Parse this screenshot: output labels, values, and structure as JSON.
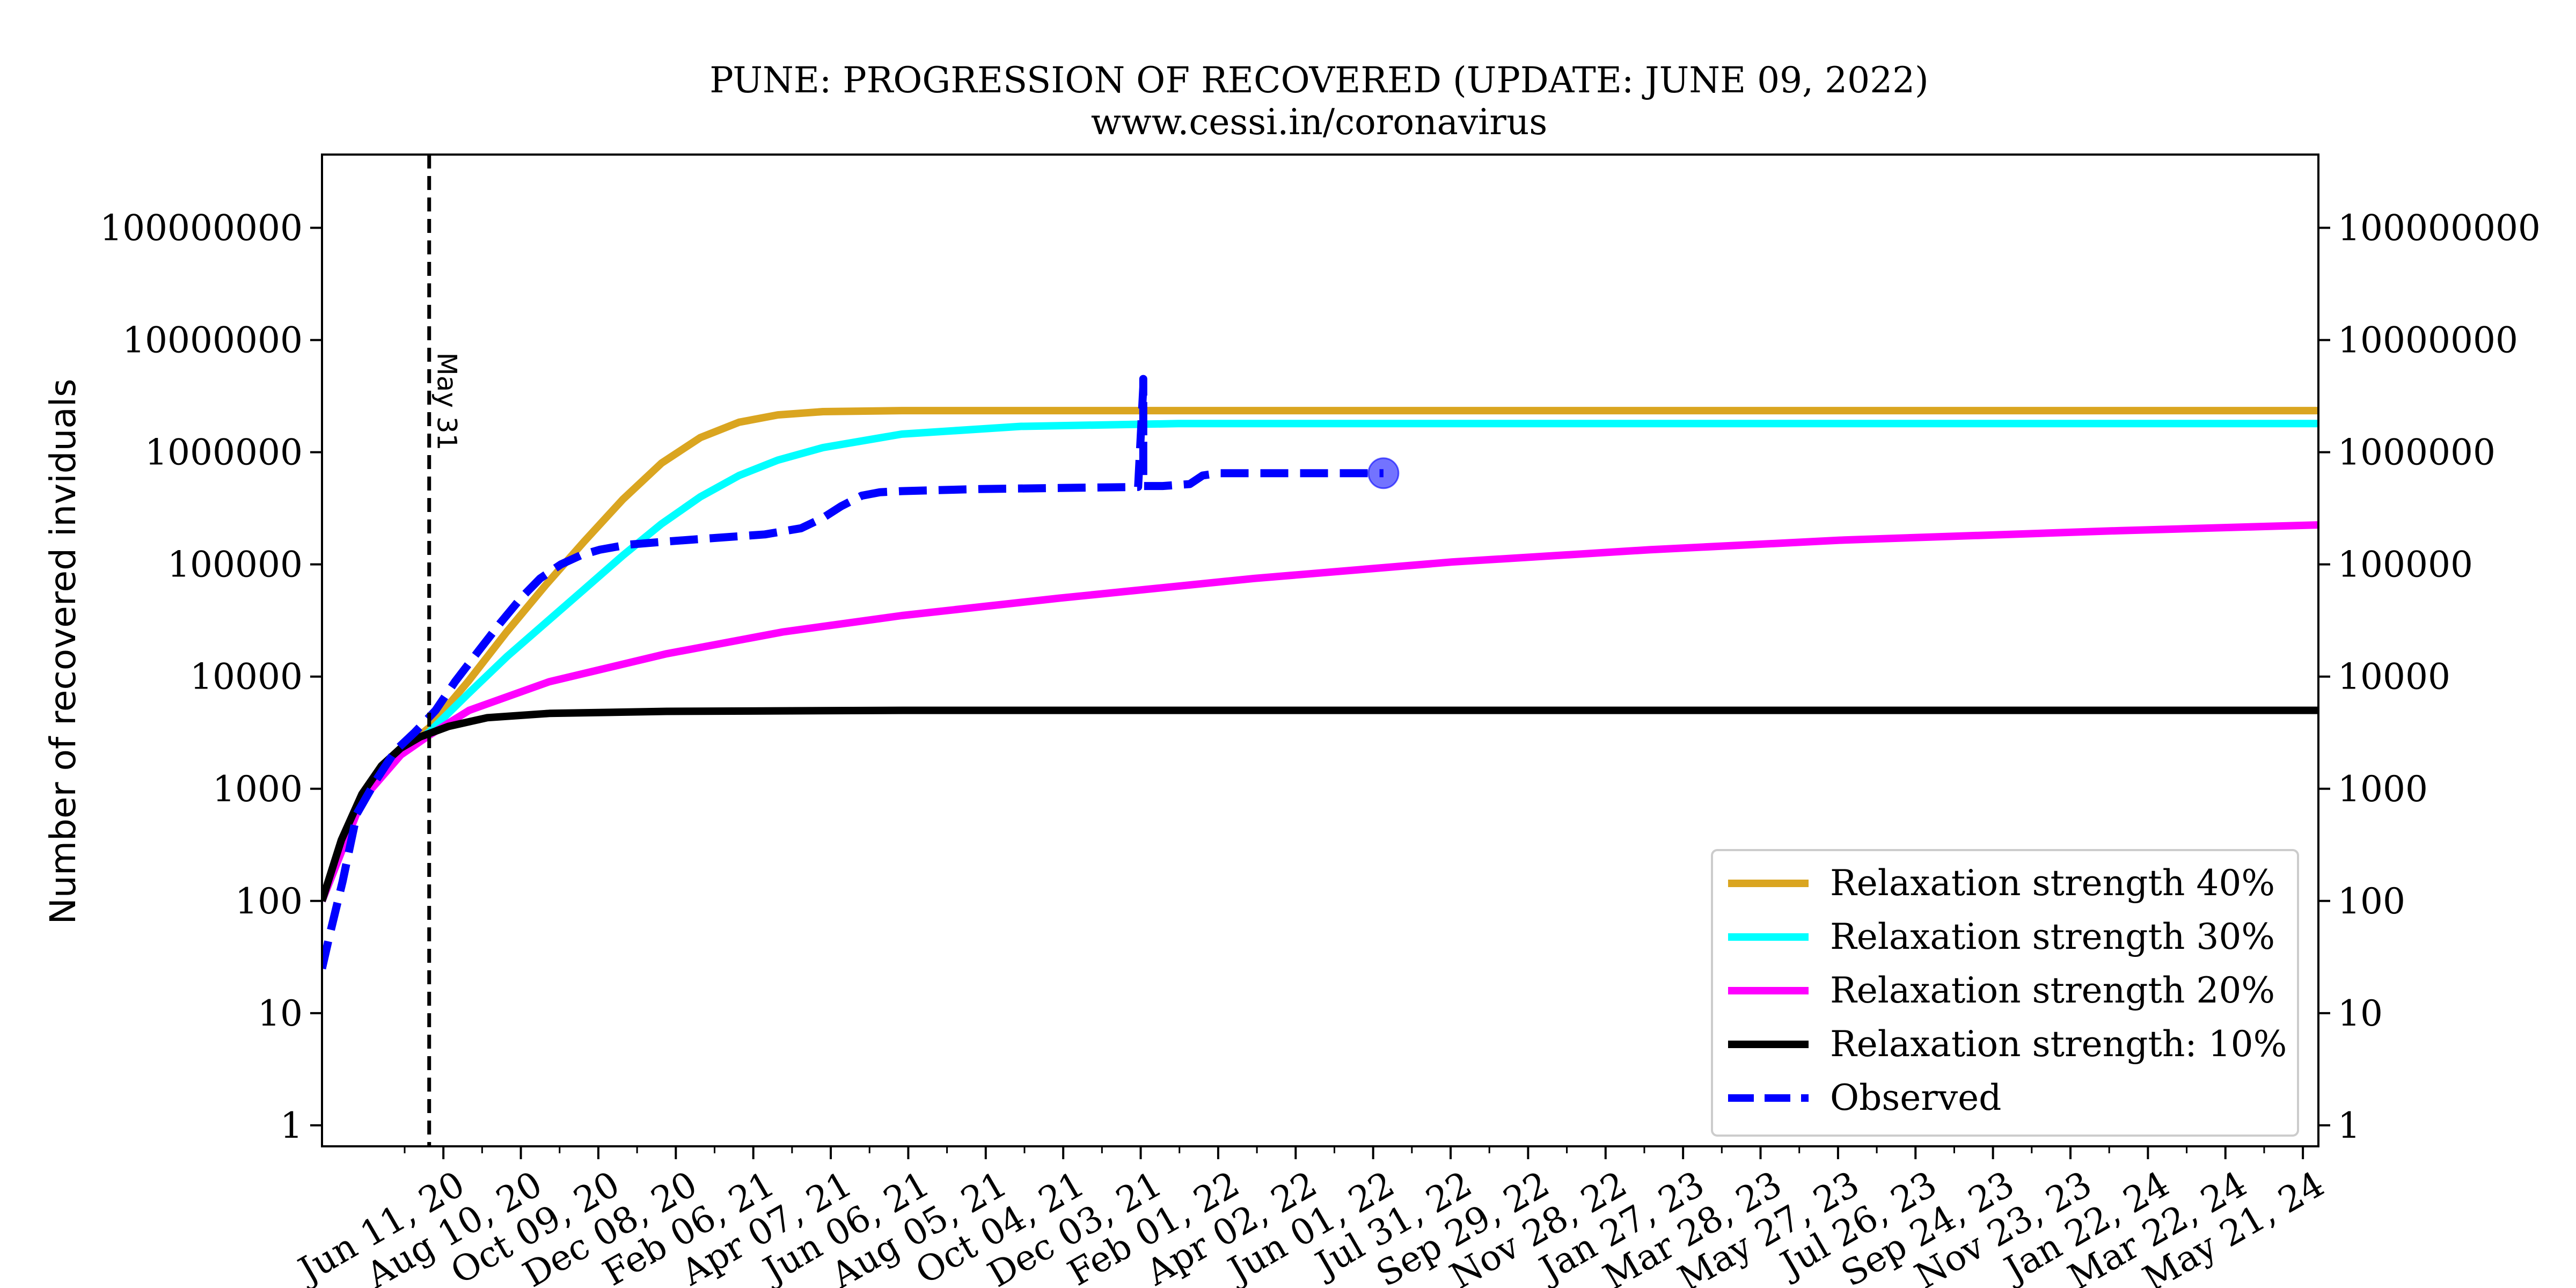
{
  "chart_data": {
    "type": "line",
    "title": "PUNE: PROGRESSION OF RECOVERED (UPDATE: JUNE 09, 2022)",
    "subtitle": "www.cessi.in/coronavirus",
    "ylabel": "Number of recovered inviduals",
    "xlabel": "",
    "y_scale": "log",
    "ylim": [
      0.65,
      450000000
    ],
    "xlim": [
      "2020-03-09",
      "2024-06-02"
    ],
    "y_ticks": [
      1,
      10,
      100,
      1000,
      10000,
      100000,
      1000000,
      10000000,
      100000000
    ],
    "y_tick_labels": [
      "1",
      "10",
      "100",
      "1000",
      "10000",
      "100000",
      "1000000",
      "10000000",
      "100000000"
    ],
    "x_ticks": [
      "2020-06-11",
      "2020-08-10",
      "2020-10-09",
      "2020-12-08",
      "2021-02-06",
      "2021-04-07",
      "2021-06-06",
      "2021-08-05",
      "2021-10-04",
      "2021-12-03",
      "2022-02-01",
      "2022-04-02",
      "2022-06-01",
      "2022-07-31",
      "2022-09-29",
      "2022-11-28",
      "2023-01-27",
      "2023-03-28",
      "2023-05-27",
      "2023-07-26",
      "2023-09-24",
      "2023-11-23",
      "2024-01-22",
      "2024-03-22",
      "2024-05-21"
    ],
    "x_tick_labels": [
      "Jun 11, 20",
      "Aug 10, 20",
      "Oct 09, 20",
      "Dec 08, 20",
      "Feb 06, 21",
      "Apr 07, 21",
      "Jun 06, 21",
      "Aug 05, 21",
      "Oct 04, 21",
      "Dec 03, 21",
      "Feb 01, 22",
      "Apr 02, 22",
      "Jun 01, 22",
      "Jul 31, 22",
      "Sep 29, 22",
      "Nov 28, 22",
      "Jan 27, 23",
      "Mar 28, 23",
      "May 27, 23",
      "Jul 26, 23",
      "Sep 24, 23",
      "Nov 23, 23",
      "Jan 22, 24",
      "Mar 22, 24",
      "May 21, 24"
    ],
    "grid": false,
    "legend_position": "lower-right",
    "annotations": [
      {
        "type": "vline",
        "x": "2020-05-31",
        "label": "May 31",
        "style": "dashed"
      }
    ],
    "series": [
      {
        "name": "Relaxation strength 40%",
        "color": "#DAA520",
        "style": "solid",
        "x": [
          "2020-03-09",
          "2020-04-09",
          "2020-05-09",
          "2020-05-31",
          "2020-06-30",
          "2020-07-30",
          "2020-08-29",
          "2020-09-28",
          "2020-10-28",
          "2020-11-27",
          "2020-12-27",
          "2021-01-26",
          "2021-02-25",
          "2021-04-01",
          "2021-06-01",
          "2022-01-01",
          "2023-01-01",
          "2024-06-02"
        ],
        "y": [
          100,
          800,
          2200,
          3500,
          9000,
          25000,
          65000,
          160000,
          380000,
          800000,
          1350000,
          1850000,
          2150000,
          2300000,
          2350000,
          2350000,
          2350000,
          2350000
        ]
      },
      {
        "name": "Relaxation strength 30%",
        "color": "#00FFFF",
        "style": "solid",
        "x": [
          "2020-03-09",
          "2020-04-09",
          "2020-05-09",
          "2020-05-31",
          "2020-06-30",
          "2020-07-30",
          "2020-08-29",
          "2020-09-28",
          "2020-10-28",
          "2020-11-27",
          "2020-12-27",
          "2021-01-26",
          "2021-02-25",
          "2021-04-01",
          "2021-06-01",
          "2021-09-01",
          "2022-01-01",
          "2023-01-01",
          "2024-06-02"
        ],
        "y": [
          100,
          800,
          2100,
          3200,
          7000,
          15000,
          30000,
          60000,
          120000,
          230000,
          400000,
          620000,
          850000,
          1100000,
          1450000,
          1700000,
          1800000,
          1800000,
          1800000
        ]
      },
      {
        "name": "Relaxation strength 20%",
        "color": "#FF00FF",
        "style": "solid",
        "x": [
          "2020-03-09",
          "2020-04-09",
          "2020-05-09",
          "2020-05-31",
          "2020-07-01",
          "2020-09-01",
          "2020-12-01",
          "2021-03-01",
          "2021-06-01",
          "2021-10-01",
          "2022-03-01",
          "2022-08-01",
          "2023-01-01",
          "2023-06-01",
          "2024-01-01",
          "2024-06-02"
        ],
        "y": [
          100,
          800,
          2000,
          3000,
          5000,
          9000,
          16000,
          25000,
          35000,
          50000,
          75000,
          105000,
          135000,
          165000,
          200000,
          225000
        ]
      },
      {
        "name": "Relaxation strength: 10%",
        "color": "#000000",
        "style": "solid",
        "x": [
          "2020-03-09",
          "2020-03-24",
          "2020-04-09",
          "2020-04-24",
          "2020-05-09",
          "2020-05-24",
          "2020-06-15",
          "2020-07-15",
          "2020-09-01",
          "2020-12-01",
          "2021-06-01",
          "2022-06-01",
          "2023-06-01",
          "2024-06-02"
        ],
        "y": [
          100,
          350,
          900,
          1600,
          2300,
          2900,
          3600,
          4300,
          4700,
          4900,
          5000,
          5000,
          5000,
          5000
        ]
      },
      {
        "name": "Observed",
        "color": "#0000FF",
        "style": "dashed",
        "x": [
          "2020-03-09",
          "2020-03-15",
          "2020-03-25",
          "2020-04-05",
          "2020-04-20",
          "2020-05-05",
          "2020-05-20",
          "2020-06-05",
          "2020-06-20",
          "2020-07-10",
          "2020-07-25",
          "2020-08-10",
          "2020-08-25",
          "2020-09-10",
          "2020-09-25",
          "2020-10-10",
          "2020-11-01",
          "2020-12-01",
          "2021-01-01",
          "2021-02-15",
          "2021-03-15",
          "2021-04-01",
          "2021-04-15",
          "2021-05-01",
          "2021-05-15",
          "2021-06-01",
          "2021-08-01",
          "2021-10-01",
          "2021-12-01",
          "2021-12-05",
          "2021-12-05",
          "2021-12-05",
          "2021-12-05",
          "2021-12-05",
          "2021-12-06",
          "2021-12-20",
          "2022-01-10",
          "2022-01-20",
          "2022-02-01",
          "2022-04-01",
          "2022-06-09"
        ],
        "y": [
          25,
          50,
          150,
          600,
          1200,
          2200,
          3200,
          5000,
          9000,
          18000,
          30000,
          50000,
          75000,
          100000,
          120000,
          135000,
          150000,
          160000,
          170000,
          185000,
          210000,
          260000,
          330000,
          410000,
          440000,
          450000,
          470000,
          480000,
          490000,
          3800000,
          900000,
          4500000,
          2500000,
          500000,
          500000,
          500000,
          520000,
          620000,
          650000,
          650000,
          650000
        ],
        "marker_last": true
      }
    ]
  }
}
